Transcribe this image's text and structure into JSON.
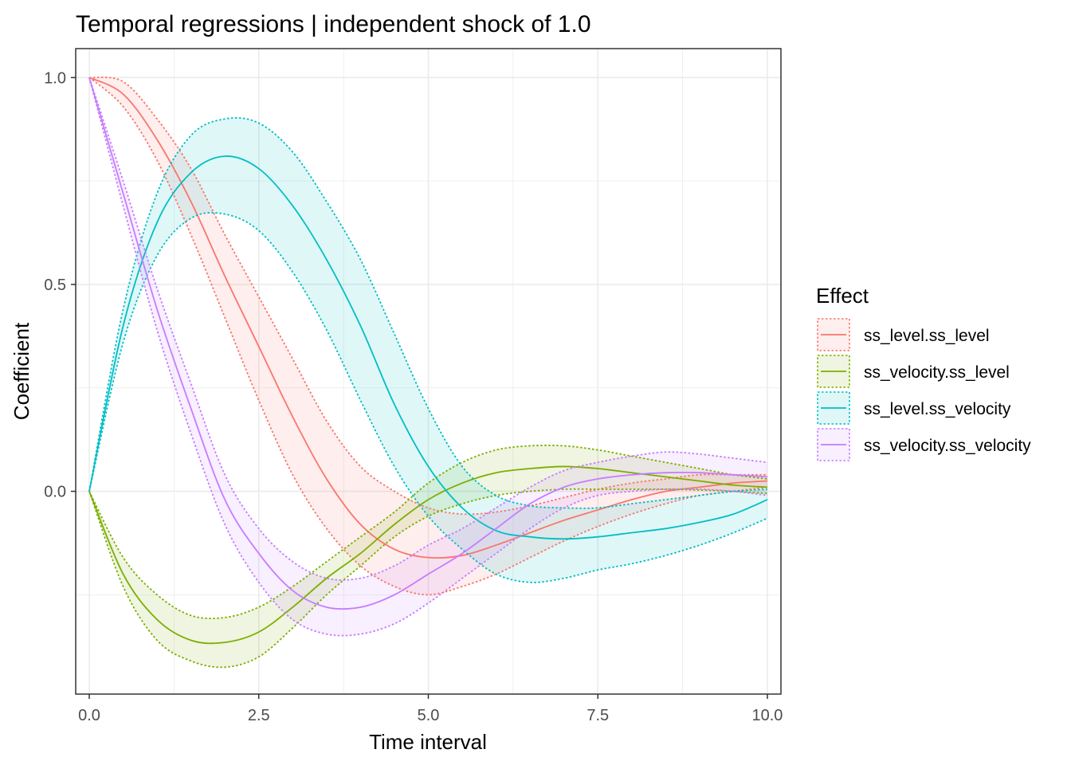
{
  "chart_data": {
    "type": "line",
    "title": "Temporal regressions | independent shock of 1.0",
    "xlabel": "Time interval",
    "ylabel": "Coefficient",
    "xlim": [
      -0.2,
      10.2
    ],
    "ylim": [
      -0.49,
      1.07
    ],
    "xticks": [
      0,
      2.5,
      5,
      7.5,
      10
    ],
    "xtick_labels": [
      "0.0",
      "2.5",
      "5.0",
      "7.5",
      "10.0"
    ],
    "yticks": [
      0,
      0.5,
      1
    ],
    "ytick_labels": [
      "0.0",
      "0.5",
      "1.0"
    ],
    "grid": true,
    "legend": {
      "title": "Effect",
      "position": "right"
    },
    "x": [
      0,
      0.5,
      1,
      1.5,
      2,
      2.5,
      3,
      3.5,
      4,
      4.5,
      5,
      5.5,
      6,
      6.5,
      7,
      7.5,
      8,
      8.5,
      9,
      9.5,
      10
    ],
    "series": [
      {
        "name": "ss_level.ss_level",
        "color": "#F8766D",
        "values": [
          1.0,
          0.96,
          0.85,
          0.7,
          0.52,
          0.35,
          0.18,
          0.03,
          -0.08,
          -0.14,
          -0.16,
          -0.155,
          -0.13,
          -0.1,
          -0.07,
          -0.045,
          -0.02,
          0.0,
          0.01,
          0.02,
          0.025
        ],
        "lower": [
          1.0,
          0.93,
          0.8,
          0.62,
          0.42,
          0.22,
          0.04,
          -0.09,
          -0.18,
          -0.23,
          -0.25,
          -0.23,
          -0.2,
          -0.16,
          -0.12,
          -0.085,
          -0.055,
          -0.03,
          -0.01,
          0.0,
          0.01
        ],
        "upper": [
          1.0,
          0.99,
          0.9,
          0.78,
          0.62,
          0.47,
          0.32,
          0.17,
          0.06,
          0.0,
          -0.04,
          -0.055,
          -0.05,
          -0.035,
          -0.015,
          0.005,
          0.02,
          0.03,
          0.04,
          0.04,
          0.04
        ]
      },
      {
        "name": "ss_velocity.ss_level",
        "color": "#7CAE00",
        "values": [
          0.0,
          -0.2,
          -0.31,
          -0.36,
          -0.365,
          -0.34,
          -0.28,
          -0.21,
          -0.15,
          -0.08,
          -0.02,
          0.02,
          0.045,
          0.055,
          0.06,
          0.055,
          0.045,
          0.035,
          0.025,
          0.015,
          0.01
        ],
        "lower": [
          0.0,
          -0.23,
          -0.36,
          -0.41,
          -0.425,
          -0.4,
          -0.33,
          -0.25,
          -0.18,
          -0.11,
          -0.06,
          -0.03,
          -0.01,
          0.0,
          0.005,
          0.005,
          0.005,
          0.005,
          0.003,
          0.0,
          -0.005
        ],
        "upper": [
          0.0,
          -0.16,
          -0.25,
          -0.3,
          -0.305,
          -0.28,
          -0.23,
          -0.17,
          -0.11,
          -0.05,
          0.02,
          0.07,
          0.1,
          0.11,
          0.11,
          0.1,
          0.085,
          0.07,
          0.055,
          0.04,
          0.03
        ]
      },
      {
        "name": "ss_level.ss_velocity",
        "color": "#00BFC4",
        "values": [
          0.0,
          0.4,
          0.65,
          0.77,
          0.81,
          0.78,
          0.69,
          0.56,
          0.4,
          0.21,
          0.06,
          -0.04,
          -0.095,
          -0.11,
          -0.115,
          -0.11,
          -0.1,
          -0.09,
          -0.075,
          -0.055,
          -0.02
        ],
        "lower": [
          0.0,
          0.36,
          0.57,
          0.66,
          0.67,
          0.63,
          0.53,
          0.39,
          0.22,
          0.06,
          -0.06,
          -0.14,
          -0.2,
          -0.22,
          -0.21,
          -0.19,
          -0.175,
          -0.155,
          -0.13,
          -0.1,
          -0.065
        ],
        "upper": [
          0.0,
          0.44,
          0.72,
          0.86,
          0.9,
          0.89,
          0.82,
          0.7,
          0.56,
          0.38,
          0.2,
          0.06,
          -0.01,
          -0.035,
          -0.04,
          -0.04,
          -0.03,
          -0.02,
          -0.01,
          0.0,
          0.005
        ]
      },
      {
        "name": "ss_velocity.ss_velocity",
        "color": "#C77CFF",
        "values": [
          1.0,
          0.72,
          0.44,
          0.2,
          -0.02,
          -0.15,
          -0.24,
          -0.28,
          -0.28,
          -0.25,
          -0.2,
          -0.15,
          -0.09,
          -0.03,
          0.01,
          0.03,
          0.04,
          0.045,
          0.045,
          0.04,
          0.035
        ],
        "lower": [
          1.0,
          0.69,
          0.39,
          0.14,
          -0.08,
          -0.22,
          -0.31,
          -0.345,
          -0.345,
          -0.32,
          -0.27,
          -0.21,
          -0.15,
          -0.09,
          -0.04,
          -0.01,
          0.0,
          0.005,
          0.005,
          0.0,
          -0.01
        ],
        "upper": [
          1.0,
          0.75,
          0.49,
          0.26,
          0.04,
          -0.09,
          -0.17,
          -0.21,
          -0.21,
          -0.18,
          -0.13,
          -0.09,
          -0.04,
          0.01,
          0.05,
          0.07,
          0.085,
          0.095,
          0.09,
          0.08,
          0.07
        ]
      }
    ]
  }
}
